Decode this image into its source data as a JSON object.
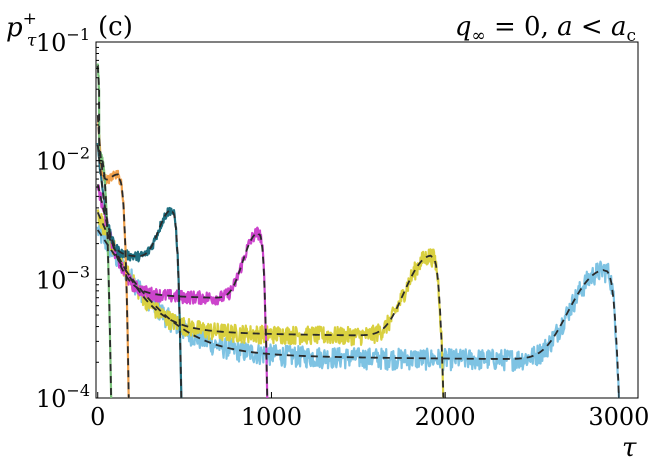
{
  "chart_data": {
    "type": "line",
    "panel_label": "(c)",
    "title_right": {
      "q": "q",
      "sub": "∞",
      "rest": " = 0, ",
      "a": "a",
      "lt": " < ",
      "ac": "a",
      "acsub": "c"
    },
    "ylabel": {
      "base": "p",
      "sub": "τ",
      "sup": "+"
    },
    "xlabel": "τ",
    "xlim": [
      -10,
      3110
    ],
    "ylim_log10": [
      -4,
      -1
    ],
    "xticks": [
      0,
      1000,
      2000,
      3000
    ],
    "xtick_labels": [
      "0",
      "1000",
      "2000",
      "3000"
    ],
    "yticks_log10": [
      -4,
      -3,
      -2,
      -1
    ],
    "ytick_labels": [
      {
        "base": "10",
        "exp": "−4"
      },
      {
        "base": "10",
        "exp": "−3"
      },
      {
        "base": "10",
        "exp": "−2"
      },
      {
        "base": "10",
        "exp": "−1"
      }
    ],
    "series": [
      {
        "name": "green",
        "color": "#7ac27a",
        "cutoff": 115,
        "start": 0.058,
        "plateau": 0.01,
        "peak_x": 8,
        "peak_y": 0.011,
        "noise": 0.05
      },
      {
        "name": "orange",
        "color": "#f0a04a",
        "cutoff": 215,
        "start": 0.022,
        "plateau": 0.0045,
        "peak_x": 118,
        "peak_y": 0.007,
        "noise": 0.05
      },
      {
        "name": "teal",
        "color": "#1f6f80",
        "cutoff": 520,
        "start": 0.013,
        "plateau": 0.00135,
        "peak_x": 425,
        "peak_y": 0.0037,
        "noise": 0.06
      },
      {
        "name": "magenta",
        "color": "#cc44cc",
        "cutoff": 1015,
        "start": 0.006,
        "plateau": 0.00062,
        "peak_x": 925,
        "peak_y": 0.0024,
        "noise": 0.08
      },
      {
        "name": "yellow",
        "color": "#d9d040",
        "cutoff": 2050,
        "start": 0.0035,
        "plateau": 0.0003,
        "peak_x": 1920,
        "peak_y": 0.00155,
        "noise": 0.11
      },
      {
        "name": "skyblue",
        "color": "#7ec3e3",
        "cutoff": 3075,
        "start": 0.0025,
        "plateau": 0.00019,
        "peak_x": 2920,
        "peak_y": 0.00118,
        "noise": 0.13
      }
    ],
    "theory_line": {
      "color": "#2a2a2a",
      "style": "dashed"
    },
    "grid": false
  }
}
